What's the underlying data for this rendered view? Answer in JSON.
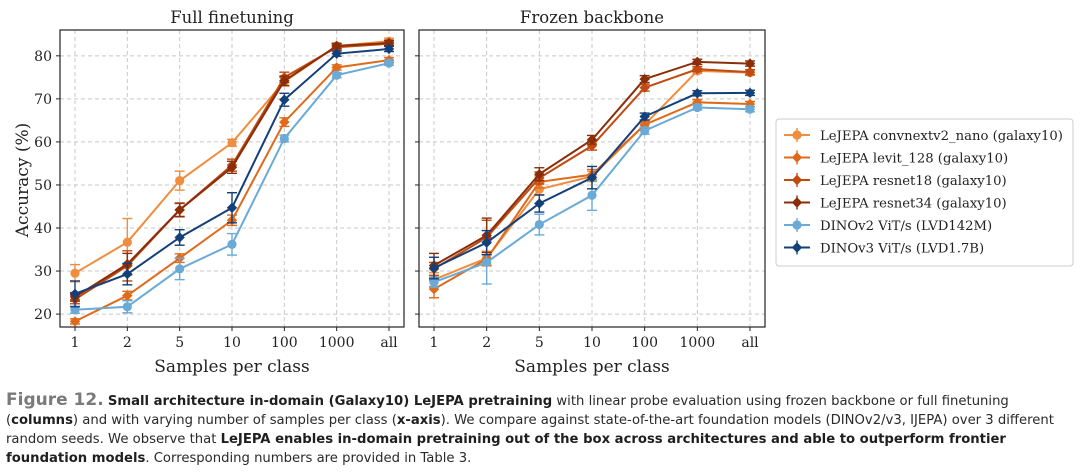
{
  "colors": {
    "convnext": "#f08d3e",
    "levit": "#e06a1c",
    "resnet18": "#c04a10",
    "resnet34": "#8a2e0a",
    "dinov2": "#6aaad6",
    "dinov3": "#14407a",
    "grid": "#c8c8c8"
  },
  "chart_data": {
    "type": "line",
    "ylabel": "Accuracy (%)",
    "xlabel": "Samples per class",
    "categories": [
      "1",
      "2",
      "5",
      "10",
      "100",
      "1000",
      "all"
    ],
    "yticks": [
      "20",
      "30",
      "40",
      "50",
      "60",
      "70",
      "80"
    ],
    "ylim": [
      17,
      86
    ],
    "grid": true,
    "legend": {
      "placement": "right",
      "entries": [
        "LeJEPA convnextv2_nano (galaxy10)",
        "LeJEPA levit_128 (galaxy10)",
        "LeJEPA resnet18 (galaxy10)",
        "LeJEPA resnet34 (galaxy10)",
        "DINOv2 ViT/s (LVD142M)",
        "DINOv3 ViT/s (LVD1.7B)"
      ]
    },
    "panels": [
      {
        "title": "Full finetuning",
        "series": [
          {
            "name": "LeJEPA convnextv2_nano (galaxy10)",
            "color": "convnext",
            "values": [
              29.5,
              36.7,
              51.0,
              59.8,
              74.0,
              82.3,
              83.4
            ],
            "err": [
              2.0,
              5.5,
              2.2,
              0.8,
              1.0,
              0.6,
              0.7
            ]
          },
          {
            "name": "LeJEPA levit_128 (galaxy10)",
            "color": "levit",
            "values": [
              18.3,
              24.3,
              33.0,
              41.8,
              64.6,
              77.3,
              79.0
            ],
            "err": [
              0.6,
              1.0,
              1.0,
              1.2,
              1.0,
              0.6,
              0.6
            ]
          },
          {
            "name": "LeJEPA resnet18 (galaxy10)",
            "color": "resnet18",
            "values": [
              23.4,
              31.2,
              44.2,
              54.6,
              75.0,
              82.0,
              82.8
            ],
            "err": [
              1.0,
              3.5,
              1.5,
              1.4,
              1.2,
              0.6,
              0.6
            ]
          },
          {
            "name": "LeJEPA resnet34 (galaxy10)",
            "color": "resnet34",
            "values": [
              24.0,
              31.6,
              44.2,
              54.1,
              74.2,
              82.3,
              83.0
            ],
            "err": [
              1.0,
              2.5,
              1.6,
              1.4,
              1.1,
              0.6,
              0.6
            ]
          },
          {
            "name": "DINOv2 ViT/s (LVD142M)",
            "color": "dinov2",
            "values": [
              21.0,
              21.7,
              30.5,
              36.2,
              60.8,
              75.5,
              78.3
            ],
            "err": [
              0.8,
              1.4,
              2.5,
              2.5,
              0.8,
              0.6,
              0.5
            ]
          },
          {
            "name": "DINOv3 ViT/s (LVD1.7B)",
            "color": "dinov3",
            "values": [
              24.7,
              29.3,
              37.8,
              44.7,
              69.8,
              80.5,
              81.6
            ],
            "err": [
              3.0,
              2.5,
              1.8,
              3.5,
              1.5,
              0.6,
              0.6
            ]
          }
        ]
      },
      {
        "title": "Frozen backbone",
        "series": [
          {
            "name": "LeJEPA convnextv2_nano (galaxy10)",
            "color": "convnext",
            "values": [
              28.0,
              33.0,
              49.0,
              52.0,
              64.0,
              76.5,
              76.1
            ],
            "err": [
              1.6,
              1.6,
              1.4,
              1.2,
              0.8,
              0.6,
              0.6
            ]
          },
          {
            "name": "LeJEPA levit_128 (galaxy10)",
            "color": "levit",
            "values": [
              25.8,
              32.8,
              50.7,
              52.4,
              64.0,
              69.2,
              68.8
            ],
            "err": [
              2.0,
              1.6,
              1.4,
              1.2,
              0.8,
              0.6,
              0.6
            ]
          },
          {
            "name": "LeJEPA resnet18 (galaxy10)",
            "color": "resnet18",
            "values": [
              30.5,
              37.8,
              51.6,
              59.1,
              72.6,
              76.9,
              76.2
            ],
            "err": [
              1.5,
              4.0,
              1.4,
              1.0,
              0.8,
              0.6,
              0.6
            ]
          },
          {
            "name": "LeJEPA resnet34 (galaxy10)",
            "color": "resnet34",
            "values": [
              31.3,
              38.3,
              52.5,
              60.5,
              74.6,
              78.6,
              78.2
            ],
            "err": [
              2.8,
              4.0,
              1.5,
              1.0,
              0.8,
              0.6,
              0.6
            ]
          },
          {
            "name": "DINOv2 ViT/s (LVD142M)",
            "color": "dinov2",
            "values": [
              27.4,
              32.0,
              40.8,
              47.6,
              62.6,
              68.0,
              67.6
            ],
            "err": [
              1.2,
              5.0,
              2.4,
              3.5,
              0.8,
              0.6,
              0.6
            ]
          },
          {
            "name": "DINOv3 ViT/s (LVD1.7B)",
            "color": "dinov3",
            "values": [
              30.7,
              36.6,
              45.7,
              51.7,
              65.9,
              71.3,
              71.4
            ],
            "err": [
              2.5,
              2.8,
              2.0,
              2.6,
              0.8,
              0.6,
              0.6
            ]
          }
        ]
      }
    ]
  },
  "caption": {
    "label": "Figure 12.",
    "bold1": "Small architecture in-domain (Galaxy10) LeJEPA pretraining",
    "text1": " with linear probe evaluation using frozen backbone or full finetuning (",
    "bold2": "columns",
    "text2": ") and with varying number of samples per class (",
    "bold3": "x-axis",
    "text3": "). We compare against state-of-the-art foundation models (DINOv2/v3, IJEPA) over 3 different random seeds. We observe that ",
    "bold4": "LeJEPA enables in-domain pretraining out of the box across architectures and able to outperform frontier foundation models",
    "text4": ". Corresponding numbers are provided in Table 3."
  }
}
